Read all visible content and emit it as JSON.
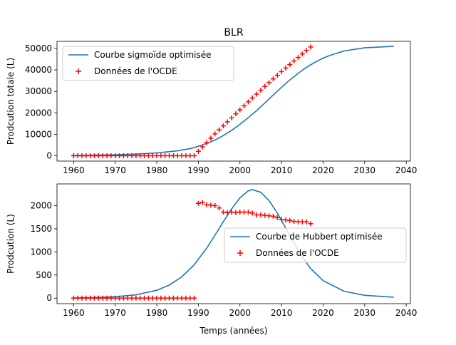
{
  "figure_title": "BLR",
  "chart_data": [
    {
      "type": "line",
      "title": "BLR",
      "xlabel": "",
      "ylabel": "Prodcution totale (L)",
      "xlim": [
        1956,
        2041
      ],
      "ylim": [
        -2500,
        53300
      ],
      "xticks": [
        1960,
        1970,
        1980,
        1990,
        2000,
        2010,
        2020,
        2030,
        2040
      ],
      "yticks": [
        0,
        10000,
        20000,
        30000,
        40000,
        50000
      ],
      "legend_position": "upper-left",
      "grid": false,
      "series": [
        {
          "name": "Courbe sigmoïde optimisée",
          "kind": "line",
          "color": "#1f77b4",
          "x": [
            1960,
            1965,
            1970,
            1975,
            1980,
            1985,
            1988,
            1990,
            1992,
            1994,
            1996,
            1998,
            2000,
            2002,
            2004,
            2006,
            2008,
            2010,
            2012,
            2014,
            2016,
            2018,
            2020,
            2022,
            2025,
            2030,
            2037
          ],
          "y": [
            150,
            250,
            420,
            750,
            1300,
            2300,
            3300,
            4400,
            5700,
            7300,
            9400,
            11800,
            14600,
            17700,
            21000,
            24600,
            28300,
            31900,
            35300,
            38400,
            41200,
            43500,
            45500,
            47000,
            48800,
            50300,
            51000
          ]
        },
        {
          "name": "Données de l'OCDE",
          "kind": "scatter",
          "marker": "+",
          "color": "#ff0000",
          "x": [
            1960,
            1961,
            1962,
            1963,
            1964,
            1965,
            1966,
            1967,
            1968,
            1969,
            1970,
            1971,
            1972,
            1973,
            1974,
            1975,
            1976,
            1977,
            1978,
            1979,
            1980,
            1981,
            1982,
            1983,
            1984,
            1985,
            1986,
            1987,
            1988,
            1989,
            1990,
            1991,
            1992,
            1993,
            1994,
            1995,
            1996,
            1997,
            1998,
            1999,
            2000,
            2001,
            2002,
            2003,
            2004,
            2005,
            2006,
            2007,
            2008,
            2009,
            2010,
            2011,
            2012,
            2013,
            2014,
            2015,
            2016,
            2017
          ],
          "y": [
            0,
            0,
            0,
            0,
            0,
            0,
            0,
            0,
            0,
            0,
            0,
            0,
            0,
            0,
            0,
            0,
            0,
            0,
            0,
            0,
            0,
            0,
            0,
            0,
            0,
            0,
            0,
            0,
            0,
            0,
            2050,
            4120,
            6150,
            8170,
            10190,
            12070,
            13930,
            15790,
            17660,
            19530,
            21380,
            23250,
            25120,
            26930,
            28720,
            30520,
            32310,
            34070,
            35800,
            37500,
            39190,
            40850,
            42500,
            44150,
            45790,
            47430,
            49060,
            50690
          ]
        }
      ]
    },
    {
      "type": "line",
      "title": "",
      "xlabel": "Temps (années)",
      "ylabel": "Prodcution (L)",
      "xlim": [
        1956,
        2041
      ],
      "ylim": [
        -120,
        2470
      ],
      "xticks": [
        1960,
        1970,
        1980,
        1990,
        2000,
        2010,
        2020,
        2030,
        2040
      ],
      "yticks": [
        0,
        500,
        1000,
        1500,
        2000
      ],
      "legend_position": "center-right",
      "grid": false,
      "series": [
        {
          "name": "Courbe de Hubbert optimisée",
          "kind": "line",
          "color": "#1f77b4",
          "x": [
            1960,
            1965,
            1970,
            1975,
            1980,
            1983,
            1986,
            1989,
            1992,
            1994,
            1996,
            1998,
            2000,
            2002,
            2003,
            2005,
            2007,
            2009,
            2011,
            2013,
            2015,
            2017,
            2020,
            2025,
            2030,
            2037
          ],
          "y": [
            5,
            12,
            30,
            72,
            170,
            280,
            460,
            720,
            1080,
            1360,
            1650,
            1930,
            2170,
            2320,
            2345,
            2290,
            2110,
            1840,
            1520,
            1190,
            890,
            640,
            380,
            150,
            60,
            20
          ]
        },
        {
          "name": "Données de l'OCDE",
          "kind": "scatter",
          "marker": "+",
          "color": "#ff0000",
          "x": [
            1960,
            1961,
            1962,
            1963,
            1964,
            1965,
            1966,
            1967,
            1968,
            1969,
            1970,
            1971,
            1972,
            1973,
            1974,
            1975,
            1976,
            1977,
            1978,
            1979,
            1980,
            1981,
            1982,
            1983,
            1984,
            1985,
            1986,
            1987,
            1988,
            1989,
            1990,
            1991,
            1992,
            1993,
            1994,
            1995,
            1996,
            1997,
            1998,
            1999,
            2000,
            2001,
            2002,
            2003,
            2004,
            2005,
            2006,
            2007,
            2008,
            2009,
            2010,
            2011,
            2012,
            2013,
            2014,
            2015,
            2016,
            2017
          ],
          "y": [
            0,
            0,
            0,
            0,
            0,
            0,
            0,
            0,
            0,
            0,
            0,
            0,
            0,
            0,
            0,
            0,
            0,
            0,
            0,
            0,
            0,
            0,
            0,
            0,
            0,
            0,
            0,
            0,
            0,
            0,
            2050,
            2070,
            2020,
            2010,
            2000,
            1950,
            1860,
            1850,
            1860,
            1850,
            1860,
            1860,
            1860,
            1840,
            1800,
            1800,
            1790,
            1780,
            1770,
            1740,
            1700,
            1690,
            1680,
            1660,
            1650,
            1650,
            1650,
            1610
          ]
        }
      ]
    }
  ]
}
